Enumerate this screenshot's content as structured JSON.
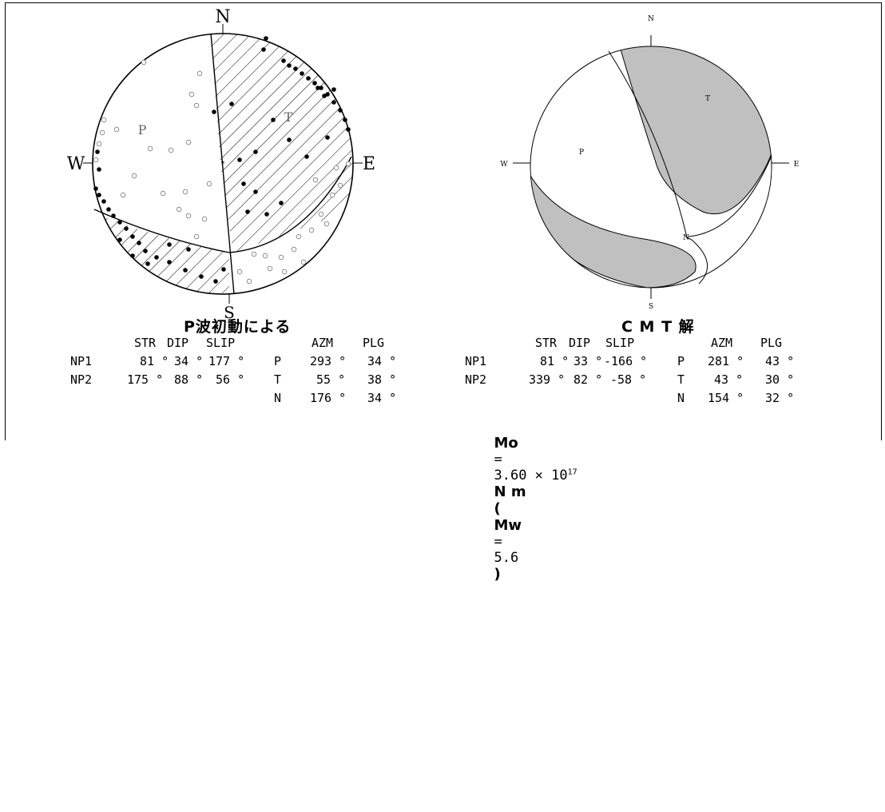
{
  "left": {
    "caption": "P波初動による",
    "dirs": {
      "n": "N",
      "s": "S",
      "e": "E",
      "w": "W"
    },
    "quad_labels": {
      "p": "P",
      "t": "T"
    },
    "headers": {
      "str": "STR",
      "dip": "DIP",
      "slip": "SLIP",
      "azm": "AZM",
      "plg": "PLG"
    },
    "rows": [
      {
        "name": "NP1",
        "str": "81 °",
        "dip": "34 °",
        "slip": "177 °",
        "axis": "P",
        "azm": "293 °",
        "plg": "34 °"
      },
      {
        "name": "NP2",
        "str": "175 °",
        "dip": "88 °",
        "slip": "56 °",
        "axis": "T",
        "azm": "55 °",
        "plg": "38 °"
      },
      {
        "name": "",
        "str": "",
        "dip": "",
        "slip": "",
        "axis": "N",
        "azm": "176 °",
        "plg": "34 °"
      }
    ]
  },
  "right": {
    "caption": "C M T 解",
    "dirs": {
      "n": "N",
      "s": "S",
      "e": "E",
      "w": "W"
    },
    "quad_labels": {
      "p": "P",
      "t": "T",
      "n": "N"
    },
    "headers": {
      "str": "STR",
      "dip": "DIP",
      "slip": "SLIP",
      "azm": "AZM",
      "plg": "PLG"
    },
    "rows": [
      {
        "name": "NP1",
        "str": "81 °",
        "dip": "33 °",
        "slip": "-166 °",
        "axis": "P",
        "azm": "281 °",
        "plg": "43 °"
      },
      {
        "name": "NP2",
        "str": "339 °",
        "dip": "82 °",
        "slip": "-58 °",
        "axis": "T",
        "azm": "43 °",
        "plg": "30 °"
      },
      {
        "name": "",
        "str": "",
        "dip": "",
        "slip": "",
        "axis": "N",
        "azm": "154 °",
        "plg": "32 °"
      }
    ],
    "moment": {
      "mo_symbol": "Mo",
      "eq": "=",
      "mantissa": "3.60 × 10",
      "exponent": "17",
      "unit": "N m",
      "paren_open": "(",
      "mw_symbol": "Mw",
      "mw_eq": "=",
      "mw_value": "5.6",
      "paren_close": ")"
    }
  },
  "colors": {
    "ink": "#000000",
    "compression_shade": "#c0c0c0",
    "paper": "#ffffff"
  }
}
